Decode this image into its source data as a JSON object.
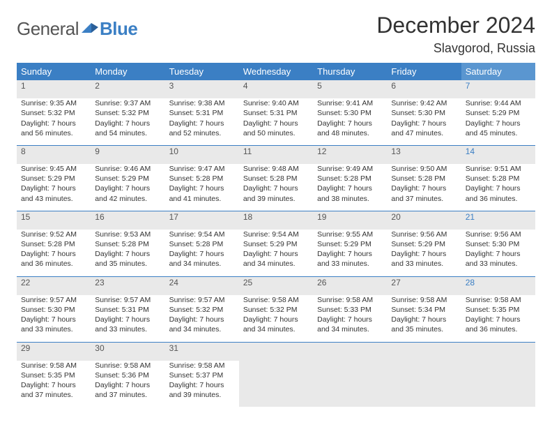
{
  "logo": {
    "text1": "General",
    "text2": "Blue"
  },
  "title": "December 2024",
  "location": "Slavgorod, Russia",
  "colors": {
    "header_blue": "#3b7fc4",
    "sat_blue": "#5a96d0",
    "row_shade": "#e9e9e9",
    "text": "#333"
  },
  "weekdays": [
    "Sunday",
    "Monday",
    "Tuesday",
    "Wednesday",
    "Thursday",
    "Friday",
    "Saturday"
  ],
  "weeks": [
    [
      {
        "n": "1",
        "sr": "Sunrise: 9:35 AM",
        "ss": "Sunset: 5:32 PM",
        "d1": "Daylight: 7 hours",
        "d2": "and 56 minutes."
      },
      {
        "n": "2",
        "sr": "Sunrise: 9:37 AM",
        "ss": "Sunset: 5:32 PM",
        "d1": "Daylight: 7 hours",
        "d2": "and 54 minutes."
      },
      {
        "n": "3",
        "sr": "Sunrise: 9:38 AM",
        "ss": "Sunset: 5:31 PM",
        "d1": "Daylight: 7 hours",
        "d2": "and 52 minutes."
      },
      {
        "n": "4",
        "sr": "Sunrise: 9:40 AM",
        "ss": "Sunset: 5:31 PM",
        "d1": "Daylight: 7 hours",
        "d2": "and 50 minutes."
      },
      {
        "n": "5",
        "sr": "Sunrise: 9:41 AM",
        "ss": "Sunset: 5:30 PM",
        "d1": "Daylight: 7 hours",
        "d2": "and 48 minutes."
      },
      {
        "n": "6",
        "sr": "Sunrise: 9:42 AM",
        "ss": "Sunset: 5:30 PM",
        "d1": "Daylight: 7 hours",
        "d2": "and 47 minutes."
      },
      {
        "n": "7",
        "sr": "Sunrise: 9:44 AM",
        "ss": "Sunset: 5:29 PM",
        "d1": "Daylight: 7 hours",
        "d2": "and 45 minutes."
      }
    ],
    [
      {
        "n": "8",
        "sr": "Sunrise: 9:45 AM",
        "ss": "Sunset: 5:29 PM",
        "d1": "Daylight: 7 hours",
        "d2": "and 43 minutes."
      },
      {
        "n": "9",
        "sr": "Sunrise: 9:46 AM",
        "ss": "Sunset: 5:29 PM",
        "d1": "Daylight: 7 hours",
        "d2": "and 42 minutes."
      },
      {
        "n": "10",
        "sr": "Sunrise: 9:47 AM",
        "ss": "Sunset: 5:28 PM",
        "d1": "Daylight: 7 hours",
        "d2": "and 41 minutes."
      },
      {
        "n": "11",
        "sr": "Sunrise: 9:48 AM",
        "ss": "Sunset: 5:28 PM",
        "d1": "Daylight: 7 hours",
        "d2": "and 39 minutes."
      },
      {
        "n": "12",
        "sr": "Sunrise: 9:49 AM",
        "ss": "Sunset: 5:28 PM",
        "d1": "Daylight: 7 hours",
        "d2": "and 38 minutes."
      },
      {
        "n": "13",
        "sr": "Sunrise: 9:50 AM",
        "ss": "Sunset: 5:28 PM",
        "d1": "Daylight: 7 hours",
        "d2": "and 37 minutes."
      },
      {
        "n": "14",
        "sr": "Sunrise: 9:51 AM",
        "ss": "Sunset: 5:28 PM",
        "d1": "Daylight: 7 hours",
        "d2": "and 36 minutes."
      }
    ],
    [
      {
        "n": "15",
        "sr": "Sunrise: 9:52 AM",
        "ss": "Sunset: 5:28 PM",
        "d1": "Daylight: 7 hours",
        "d2": "and 36 minutes."
      },
      {
        "n": "16",
        "sr": "Sunrise: 9:53 AM",
        "ss": "Sunset: 5:28 PM",
        "d1": "Daylight: 7 hours",
        "d2": "and 35 minutes."
      },
      {
        "n": "17",
        "sr": "Sunrise: 9:54 AM",
        "ss": "Sunset: 5:28 PM",
        "d1": "Daylight: 7 hours",
        "d2": "and 34 minutes."
      },
      {
        "n": "18",
        "sr": "Sunrise: 9:54 AM",
        "ss": "Sunset: 5:29 PM",
        "d1": "Daylight: 7 hours",
        "d2": "and 34 minutes."
      },
      {
        "n": "19",
        "sr": "Sunrise: 9:55 AM",
        "ss": "Sunset: 5:29 PM",
        "d1": "Daylight: 7 hours",
        "d2": "and 33 minutes."
      },
      {
        "n": "20",
        "sr": "Sunrise: 9:56 AM",
        "ss": "Sunset: 5:29 PM",
        "d1": "Daylight: 7 hours",
        "d2": "and 33 minutes."
      },
      {
        "n": "21",
        "sr": "Sunrise: 9:56 AM",
        "ss": "Sunset: 5:30 PM",
        "d1": "Daylight: 7 hours",
        "d2": "and 33 minutes."
      }
    ],
    [
      {
        "n": "22",
        "sr": "Sunrise: 9:57 AM",
        "ss": "Sunset: 5:30 PM",
        "d1": "Daylight: 7 hours",
        "d2": "and 33 minutes."
      },
      {
        "n": "23",
        "sr": "Sunrise: 9:57 AM",
        "ss": "Sunset: 5:31 PM",
        "d1": "Daylight: 7 hours",
        "d2": "and 33 minutes."
      },
      {
        "n": "24",
        "sr": "Sunrise: 9:57 AM",
        "ss": "Sunset: 5:32 PM",
        "d1": "Daylight: 7 hours",
        "d2": "and 34 minutes."
      },
      {
        "n": "25",
        "sr": "Sunrise: 9:58 AM",
        "ss": "Sunset: 5:32 PM",
        "d1": "Daylight: 7 hours",
        "d2": "and 34 minutes."
      },
      {
        "n": "26",
        "sr": "Sunrise: 9:58 AM",
        "ss": "Sunset: 5:33 PM",
        "d1": "Daylight: 7 hours",
        "d2": "and 34 minutes."
      },
      {
        "n": "27",
        "sr": "Sunrise: 9:58 AM",
        "ss": "Sunset: 5:34 PM",
        "d1": "Daylight: 7 hours",
        "d2": "and 35 minutes."
      },
      {
        "n": "28",
        "sr": "Sunrise: 9:58 AM",
        "ss": "Sunset: 5:35 PM",
        "d1": "Daylight: 7 hours",
        "d2": "and 36 minutes."
      }
    ],
    [
      {
        "n": "29",
        "sr": "Sunrise: 9:58 AM",
        "ss": "Sunset: 5:35 PM",
        "d1": "Daylight: 7 hours",
        "d2": "and 37 minutes."
      },
      {
        "n": "30",
        "sr": "Sunrise: 9:58 AM",
        "ss": "Sunset: 5:36 PM",
        "d1": "Daylight: 7 hours",
        "d2": "and 37 minutes."
      },
      {
        "n": "31",
        "sr": "Sunrise: 9:58 AM",
        "ss": "Sunset: 5:37 PM",
        "d1": "Daylight: 7 hours",
        "d2": "and 39 minutes."
      },
      null,
      null,
      null,
      null
    ]
  ]
}
